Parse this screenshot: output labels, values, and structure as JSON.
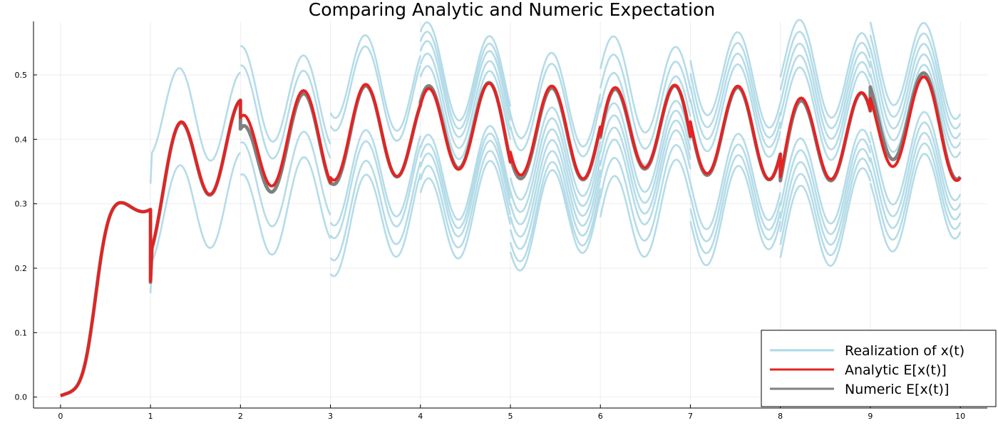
{
  "chart_data": {
    "type": "line",
    "title": "Comparing Analytic and Numeric Expectation",
    "xlabel": "",
    "ylabel": "",
    "xlim": [
      -0.3,
      10.3
    ],
    "ylim": [
      -0.017,
      0.583
    ],
    "xticks": [
      0,
      1,
      2,
      3,
      4,
      5,
      6,
      7,
      8,
      9,
      10
    ],
    "yticks": [
      0.0,
      0.1,
      0.2,
      0.3,
      0.4,
      0.5
    ],
    "xtick_labels": [
      "0",
      "1",
      "2",
      "3",
      "4",
      "5",
      "6",
      "7",
      "8",
      "9",
      "10"
    ],
    "ytick_labels": [
      "0.0",
      "0.1",
      "0.2",
      "0.3",
      "0.4",
      "0.5"
    ],
    "grid": true,
    "legend_position": "bottom-right",
    "series": [
      {
        "name": "Realization of x(t)",
        "color": "#add8e6",
        "kind": "realizations",
        "initial_segment": {
          "from": 0,
          "to": 1
        },
        "interval_offsets": [
          [
            0
          ],
          [
            -0.13,
            0.04
          ],
          [
            -0.13,
            -0.08,
            0.04,
            0.07
          ],
          [
            -0.15,
            -0.125,
            -0.09,
            -0.07,
            0.08,
            0.1
          ],
          [
            -0.14,
            -0.12,
            -0.1,
            -0.085,
            -0.07,
            0.04,
            0.06,
            0.08,
            0.095,
            0.11
          ],
          [
            -0.145,
            -0.13,
            -0.11,
            -0.09,
            -0.07,
            -0.05,
            -0.03,
            0.05,
            0.07
          ],
          [
            -0.14,
            -0.11,
            -0.08,
            -0.06,
            -0.04,
            -0.02,
            0.03,
            0.06,
            0.09
          ],
          [
            -0.14,
            -0.12,
            -0.1,
            -0.08,
            0.05,
            0.07,
            0.09,
            0.11
          ],
          [
            -0.16,
            -0.14,
            -0.12,
            -0.1,
            -0.08,
            0.04,
            0.06,
            0.08,
            0.1,
            0.12
          ],
          [
            -0.12,
            -0.1,
            -0.08,
            -0.06,
            -0.04,
            0.05,
            0.07,
            0.09,
            0.11,
            0.13
          ]
        ]
      },
      {
        "name": "Analytic E[x(t)]",
        "color": "#e62222",
        "kind": "mean",
        "interval_starts": [
          0,
          0.21,
          0.405,
          0.315,
          0.405,
          0.37,
          0.345,
          0.42,
          0.31,
          0.415
        ],
        "interval_ends": [
          0.268,
          0.503,
          0.395,
          0.505,
          0.46,
          0.438,
          0.527,
          0.39,
          0.512,
          0.435
        ]
      },
      {
        "name": "Numeric E[x(t)]",
        "color": "#808080",
        "kind": "mean",
        "interval_starts": [
          0,
          0.21,
          0.39,
          0.305,
          0.41,
          0.365,
          0.345,
          0.42,
          0.305,
          0.43
        ],
        "interval_ends": [
          0.268,
          0.5,
          0.39,
          0.51,
          0.46,
          0.435,
          0.522,
          0.385,
          0.51,
          0.44
        ]
      }
    ]
  }
}
